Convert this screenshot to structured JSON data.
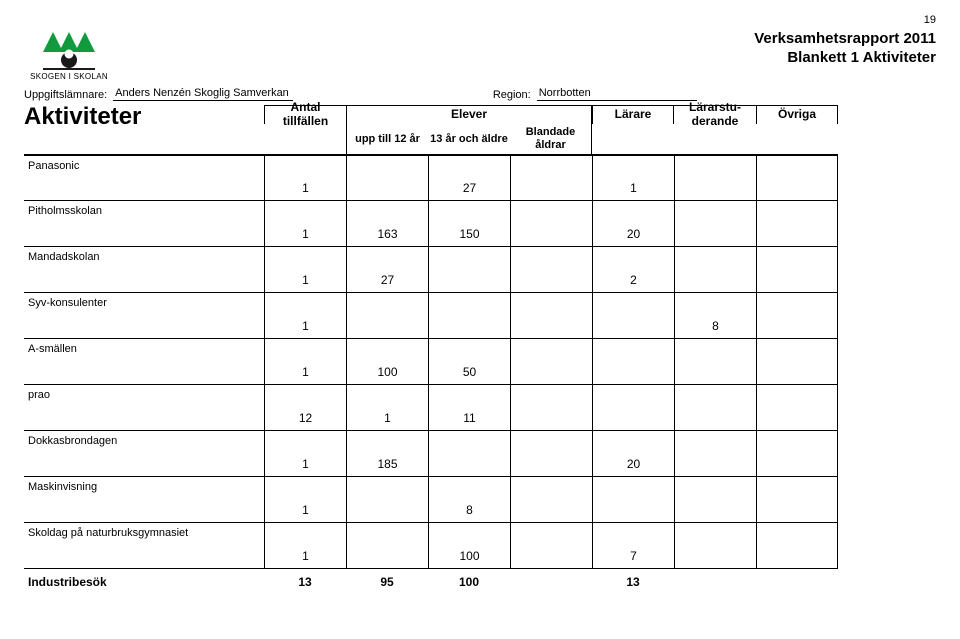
{
  "page_number": "19",
  "logo": {
    "caption": "SKOGEN I SKOLAN",
    "colors": {
      "green": "#129a3f",
      "dark": "#1a1a1a",
      "white": "#ffffff"
    }
  },
  "title_line1": "Verksamhetsrapport 2011",
  "title_line2": "Blankett 1 Aktiviteter",
  "meta": {
    "submitter_label": "Uppgiftslämnare:",
    "submitter_value": "Anders Nenzén Skoglig Samverkan",
    "region_label": "Region:",
    "region_value": "Norrbotten"
  },
  "section_title": "Aktiviteter",
  "headers": {
    "antal": "Antal tillfällen",
    "elever": "Elever",
    "upp": "upp till 12 år",
    "tretton": "13 år och äldre",
    "blandade": "Blandade åldrar",
    "larare": "Lärare",
    "lararstu": "Lärarstu-derande",
    "ovriga": "Övriga"
  },
  "rows": [
    {
      "name": "Panasonic",
      "vals": [
        "1",
        "",
        "27",
        "",
        "1",
        "",
        ""
      ]
    },
    {
      "name": "Pitholmsskolan",
      "vals": [
        "1",
        "163",
        "150",
        "",
        "20",
        "",
        ""
      ]
    },
    {
      "name": "Mandadskolan",
      "vals": [
        "1",
        "27",
        "",
        "",
        "2",
        "",
        ""
      ]
    },
    {
      "name": "Syv-konsulenter",
      "vals": [
        "1",
        "",
        "",
        "",
        "",
        "8",
        ""
      ]
    },
    {
      "name": "A-smällen",
      "vals": [
        "1",
        "100",
        "50",
        "",
        "",
        "",
        ""
      ]
    },
    {
      "name": "prao",
      "vals": [
        "12",
        "1",
        "11",
        "",
        "",
        "",
        ""
      ]
    },
    {
      "name": "Dokkasbrondagen",
      "vals": [
        "1",
        "185",
        "",
        "",
        "20",
        "",
        ""
      ]
    },
    {
      "name": "Maskinvisning",
      "vals": [
        "1",
        "",
        "8",
        "",
        "",
        "",
        ""
      ]
    },
    {
      "name": "Skoldag på naturbruksgymnasiet",
      "vals": [
        "1",
        "",
        "100",
        "",
        "7",
        "",
        ""
      ]
    }
  ],
  "footer": {
    "name": "Industribesök",
    "vals": [
      "13",
      "95",
      "100",
      "",
      "13",
      "",
      ""
    ]
  }
}
